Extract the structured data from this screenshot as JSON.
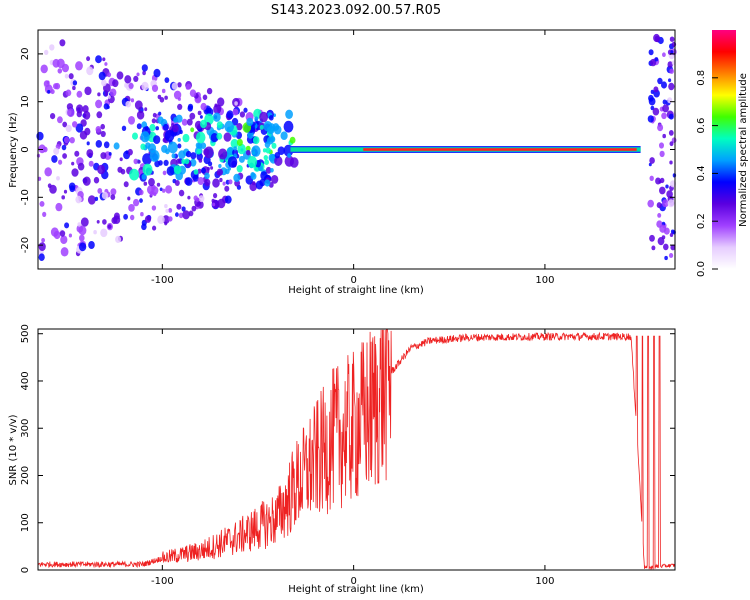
{
  "title": "S143.2023.092.00.57.R05",
  "chart_data": [
    {
      "type": "heatmap",
      "name": "spectrogram",
      "xlabel": "Height of straight line (km)",
      "ylabel": "Frequency (Hz)",
      "xlim": [
        -165,
        168
      ],
      "ylim": [
        -25,
        25
      ],
      "xticks": [
        -100,
        0,
        100
      ],
      "yticks": [
        -20,
        -10,
        0,
        10,
        20
      ],
      "colorbar": {
        "label": "Normalized spectral amplitude",
        "range": [
          0,
          1
        ],
        "ticks": [
          0.0,
          0.2,
          0.4,
          0.6,
          0.8
        ],
        "colormap": [
          "#ffffff",
          "#e6ccff",
          "#a040ff",
          "#5a00e0",
          "#0000ff",
          "#00a0ff",
          "#00ffc0",
          "#40ff00",
          "#ffff00",
          "#ff8000",
          "#ff0000",
          "#ff0080"
        ]
      },
      "features": {
        "carrier_frequency_hz": 0,
        "carrier_x_range": [
          -35,
          150
        ],
        "peak_amplitude_x_range": [
          5,
          148
        ],
        "noise_x_range": [
          -165,
          -40
        ],
        "noise_x_range_right": [
          155,
          168
        ]
      }
    },
    {
      "type": "line",
      "name": "snr",
      "xlabel": "Height of straight line (km)",
      "ylabel": "SNR (10 * v/v)",
      "xlim": [
        -165,
        168
      ],
      "ylim": [
        0,
        510
      ],
      "xticks": [
        -100,
        0,
        100
      ],
      "yticks": [
        0,
        100,
        200,
        300,
        400,
        500
      ],
      "series_color": "#ee2222",
      "profile": {
        "x": [
          -165,
          -110,
          -100,
          -80,
          -60,
          -40,
          -30,
          -20,
          -10,
          0,
          10,
          20,
          30,
          40,
          60,
          80,
          100,
          120,
          145,
          148,
          152,
          156,
          160,
          168
        ],
        "y": [
          12,
          12,
          25,
          40,
          70,
          110,
          180,
          230,
          280,
          300,
          340,
          420,
          470,
          485,
          492,
          493,
          494,
          494,
          494,
          300,
          5,
          5,
          8,
          10
        ]
      },
      "dropout_x": [
        148,
        151,
        154,
        157,
        160
      ]
    }
  ]
}
